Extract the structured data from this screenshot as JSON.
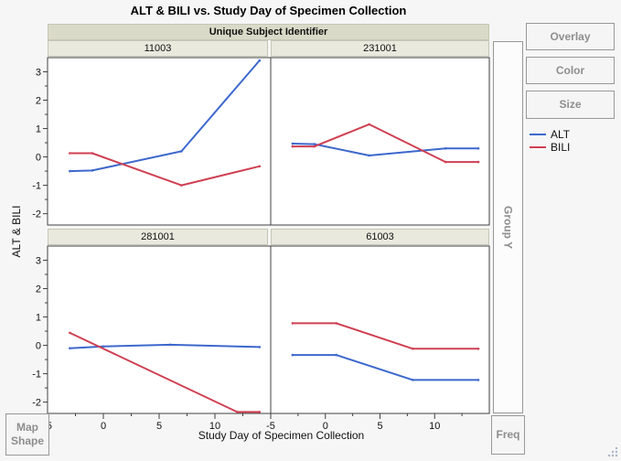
{
  "chart_data": {
    "type": "line",
    "title": "ALT & BILI vs. Study Day of Specimen Collection",
    "facet_label": "Unique Subject Identifier",
    "xlabel": "Study Day of Specimen Collection",
    "ylabel": "ALT & BILI",
    "xlim": [
      -5,
      15
    ],
    "ylim": [
      -2.4,
      3.5
    ],
    "x_ticks": [
      -5,
      0,
      5,
      10
    ],
    "x_minor_ticks": [
      -2.5,
      2.5,
      7.5,
      12.5
    ],
    "y_ticks": [
      3,
      2,
      1,
      0,
      -1,
      -2
    ],
    "y_minor_ticks": [
      2.5,
      1.5,
      0.5,
      -0.5,
      -1.5
    ],
    "grid": false,
    "legend": {
      "position": "right",
      "entries": [
        {
          "label": "ALT",
          "color": "#3d68cd"
        },
        {
          "label": "BILI",
          "color": "#cf4053"
        }
      ]
    },
    "panels": [
      {
        "subject": "11003",
        "series": [
          {
            "name": "ALT",
            "color": "#3d68cd",
            "points": [
              [
                -3,
                -0.5
              ],
              [
                -1,
                -0.48
              ],
              [
                7,
                0.2
              ],
              [
                14,
                3.4
              ]
            ]
          },
          {
            "name": "BILI",
            "color": "#cf4053",
            "points": [
              [
                -3,
                0.13
              ],
              [
                -1,
                0.13
              ],
              [
                7,
                -1.0
              ],
              [
                14,
                -0.33
              ]
            ]
          }
        ]
      },
      {
        "subject": "231001",
        "series": [
          {
            "name": "ALT",
            "color": "#3d68cd",
            "points": [
              [
                -3,
                0.47
              ],
              [
                -1,
                0.45
              ],
              [
                4,
                0.05
              ],
              [
                11,
                0.3
              ],
              [
                14,
                0.3
              ]
            ]
          },
          {
            "name": "BILI",
            "color": "#cf4053",
            "points": [
              [
                -3,
                0.37
              ],
              [
                -1,
                0.37
              ],
              [
                4,
                1.15
              ],
              [
                11,
                -0.18
              ],
              [
                14,
                -0.18
              ]
            ]
          }
        ]
      },
      {
        "subject": "281001",
        "series": [
          {
            "name": "ALT",
            "color": "#3d68cd",
            "points": [
              [
                -3,
                -0.1
              ],
              [
                0,
                -0.04
              ],
              [
                6,
                0.02
              ],
              [
                14,
                -0.06
              ]
            ]
          },
          {
            "name": "BILI",
            "color": "#cf4053",
            "points": [
              [
                -3,
                0.44
              ],
              [
                12,
                -2.35
              ],
              [
                14,
                -2.35
              ]
            ]
          }
        ]
      },
      {
        "subject": "61003",
        "series": [
          {
            "name": "ALT",
            "color": "#3d68cd",
            "points": [
              [
                -3,
                -0.34
              ],
              [
                1,
                -0.34
              ],
              [
                8,
                -1.22
              ],
              [
                14,
                -1.22
              ]
            ]
          },
          {
            "name": "BILI",
            "color": "#cf4053",
            "points": [
              [
                -3,
                0.78
              ],
              [
                1,
                0.78
              ],
              [
                8,
                -0.12
              ],
              [
                14,
                -0.12
              ]
            ]
          }
        ]
      }
    ]
  },
  "controls": {
    "overlay": "Overlay",
    "color": "Color",
    "size": "Size",
    "group_y": "Group Y",
    "freq": "Freq",
    "map_shape": [
      "Map",
      "Shape"
    ]
  },
  "colors": {
    "window_bg": "#f6f6f6",
    "strip_dark": "#dadac8",
    "strip_light": "#e9e9de",
    "frame": "#404040",
    "alt_blue": "#3d68cd",
    "bili_red": "#cf4053",
    "button_text": "#8e8e8e"
  }
}
